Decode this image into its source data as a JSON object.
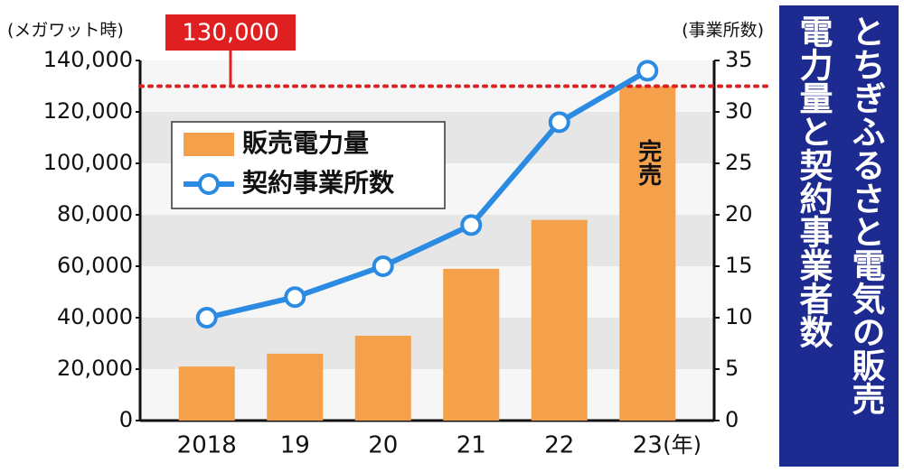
{
  "chart_data": {
    "type": "bar_line",
    "title": "とちぎふるさと電気の販売電力量と契約事業者数",
    "y_label": "(メガワット時)",
    "y2_label": "(事業所数)",
    "x_unit": "(年)",
    "categories": [
      "2018",
      "19",
      "20",
      "21",
      "22",
      "23"
    ],
    "series": [
      {
        "name": "販売電力量",
        "type": "bar",
        "color": "#f5a04a",
        "values": [
          21000,
          26000,
          33000,
          59000,
          78000,
          130000
        ]
      },
      {
        "name": "契約事業所数",
        "type": "line",
        "axis": "y2",
        "color": "#2b8be3",
        "values": [
          10,
          12,
          15,
          19,
          29,
          34
        ]
      }
    ],
    "ylim": [
      0,
      140000
    ],
    "yticks": [
      0,
      {
        "value": 20000,
        "label": "20,000"
      },
      {
        "value": 40000,
        "label": "40,000"
      },
      {
        "value": 60000,
        "label": "60,000"
      },
      {
        "value": 80000,
        "label": "80,000"
      },
      {
        "value": 100000,
        "label": "100,000"
      },
      {
        "value": 120000,
        "label": "120,000"
      },
      {
        "value": 140000,
        "label": "140,000"
      }
    ],
    "y2lim": [
      0,
      35
    ],
    "y2ticks": [
      0,
      5,
      10,
      15,
      20,
      25,
      30,
      35
    ],
    "reference_line": {
      "value": 130000,
      "label": "130,000",
      "color": "#e02020"
    },
    "bar_annotation": "完売"
  }
}
